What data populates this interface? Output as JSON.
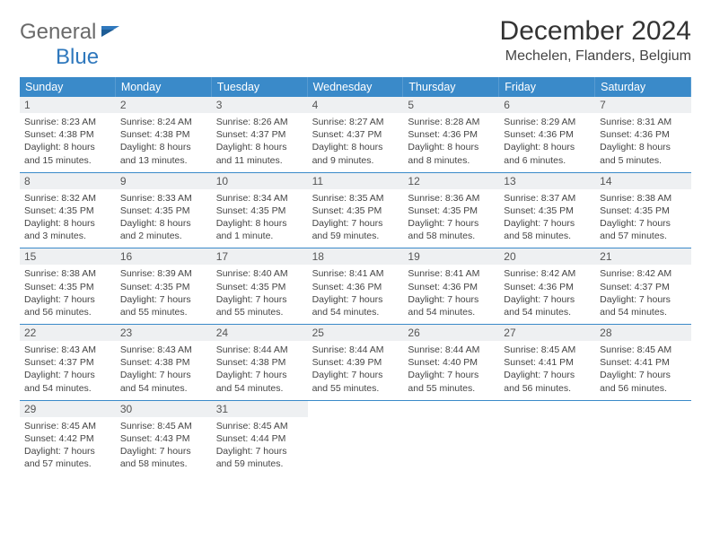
{
  "brand": {
    "part1": "General",
    "part2": "Blue"
  },
  "title": "December 2024",
  "location": "Mechelen, Flanders, Belgium",
  "colors": {
    "header_bg": "#3a8ac9",
    "header_text": "#ffffff",
    "daynum_bg": "#eef0f2",
    "rule": "#3a8ac9",
    "brand_gray": "#6a6a6a",
    "brand_blue": "#2f78bd"
  },
  "days_of_week": [
    "Sunday",
    "Monday",
    "Tuesday",
    "Wednesday",
    "Thursday",
    "Friday",
    "Saturday"
  ],
  "weeks": [
    [
      {
        "n": "1",
        "sr": "Sunrise: 8:23 AM",
        "ss": "Sunset: 4:38 PM",
        "dl1": "Daylight: 8 hours",
        "dl2": "and 15 minutes."
      },
      {
        "n": "2",
        "sr": "Sunrise: 8:24 AM",
        "ss": "Sunset: 4:38 PM",
        "dl1": "Daylight: 8 hours",
        "dl2": "and 13 minutes."
      },
      {
        "n": "3",
        "sr": "Sunrise: 8:26 AM",
        "ss": "Sunset: 4:37 PM",
        "dl1": "Daylight: 8 hours",
        "dl2": "and 11 minutes."
      },
      {
        "n": "4",
        "sr": "Sunrise: 8:27 AM",
        "ss": "Sunset: 4:37 PM",
        "dl1": "Daylight: 8 hours",
        "dl2": "and 9 minutes."
      },
      {
        "n": "5",
        "sr": "Sunrise: 8:28 AM",
        "ss": "Sunset: 4:36 PM",
        "dl1": "Daylight: 8 hours",
        "dl2": "and 8 minutes."
      },
      {
        "n": "6",
        "sr": "Sunrise: 8:29 AM",
        "ss": "Sunset: 4:36 PM",
        "dl1": "Daylight: 8 hours",
        "dl2": "and 6 minutes."
      },
      {
        "n": "7",
        "sr": "Sunrise: 8:31 AM",
        "ss": "Sunset: 4:36 PM",
        "dl1": "Daylight: 8 hours",
        "dl2": "and 5 minutes."
      }
    ],
    [
      {
        "n": "8",
        "sr": "Sunrise: 8:32 AM",
        "ss": "Sunset: 4:35 PM",
        "dl1": "Daylight: 8 hours",
        "dl2": "and 3 minutes."
      },
      {
        "n": "9",
        "sr": "Sunrise: 8:33 AM",
        "ss": "Sunset: 4:35 PM",
        "dl1": "Daylight: 8 hours",
        "dl2": "and 2 minutes."
      },
      {
        "n": "10",
        "sr": "Sunrise: 8:34 AM",
        "ss": "Sunset: 4:35 PM",
        "dl1": "Daylight: 8 hours",
        "dl2": "and 1 minute."
      },
      {
        "n": "11",
        "sr": "Sunrise: 8:35 AM",
        "ss": "Sunset: 4:35 PM",
        "dl1": "Daylight: 7 hours",
        "dl2": "and 59 minutes."
      },
      {
        "n": "12",
        "sr": "Sunrise: 8:36 AM",
        "ss": "Sunset: 4:35 PM",
        "dl1": "Daylight: 7 hours",
        "dl2": "and 58 minutes."
      },
      {
        "n": "13",
        "sr": "Sunrise: 8:37 AM",
        "ss": "Sunset: 4:35 PM",
        "dl1": "Daylight: 7 hours",
        "dl2": "and 58 minutes."
      },
      {
        "n": "14",
        "sr": "Sunrise: 8:38 AM",
        "ss": "Sunset: 4:35 PM",
        "dl1": "Daylight: 7 hours",
        "dl2": "and 57 minutes."
      }
    ],
    [
      {
        "n": "15",
        "sr": "Sunrise: 8:38 AM",
        "ss": "Sunset: 4:35 PM",
        "dl1": "Daylight: 7 hours",
        "dl2": "and 56 minutes."
      },
      {
        "n": "16",
        "sr": "Sunrise: 8:39 AM",
        "ss": "Sunset: 4:35 PM",
        "dl1": "Daylight: 7 hours",
        "dl2": "and 55 minutes."
      },
      {
        "n": "17",
        "sr": "Sunrise: 8:40 AM",
        "ss": "Sunset: 4:35 PM",
        "dl1": "Daylight: 7 hours",
        "dl2": "and 55 minutes."
      },
      {
        "n": "18",
        "sr": "Sunrise: 8:41 AM",
        "ss": "Sunset: 4:36 PM",
        "dl1": "Daylight: 7 hours",
        "dl2": "and 54 minutes."
      },
      {
        "n": "19",
        "sr": "Sunrise: 8:41 AM",
        "ss": "Sunset: 4:36 PM",
        "dl1": "Daylight: 7 hours",
        "dl2": "and 54 minutes."
      },
      {
        "n": "20",
        "sr": "Sunrise: 8:42 AM",
        "ss": "Sunset: 4:36 PM",
        "dl1": "Daylight: 7 hours",
        "dl2": "and 54 minutes."
      },
      {
        "n": "21",
        "sr": "Sunrise: 8:42 AM",
        "ss": "Sunset: 4:37 PM",
        "dl1": "Daylight: 7 hours",
        "dl2": "and 54 minutes."
      }
    ],
    [
      {
        "n": "22",
        "sr": "Sunrise: 8:43 AM",
        "ss": "Sunset: 4:37 PM",
        "dl1": "Daylight: 7 hours",
        "dl2": "and 54 minutes."
      },
      {
        "n": "23",
        "sr": "Sunrise: 8:43 AM",
        "ss": "Sunset: 4:38 PM",
        "dl1": "Daylight: 7 hours",
        "dl2": "and 54 minutes."
      },
      {
        "n": "24",
        "sr": "Sunrise: 8:44 AM",
        "ss": "Sunset: 4:38 PM",
        "dl1": "Daylight: 7 hours",
        "dl2": "and 54 minutes."
      },
      {
        "n": "25",
        "sr": "Sunrise: 8:44 AM",
        "ss": "Sunset: 4:39 PM",
        "dl1": "Daylight: 7 hours",
        "dl2": "and 55 minutes."
      },
      {
        "n": "26",
        "sr": "Sunrise: 8:44 AM",
        "ss": "Sunset: 4:40 PM",
        "dl1": "Daylight: 7 hours",
        "dl2": "and 55 minutes."
      },
      {
        "n": "27",
        "sr": "Sunrise: 8:45 AM",
        "ss": "Sunset: 4:41 PM",
        "dl1": "Daylight: 7 hours",
        "dl2": "and 56 minutes."
      },
      {
        "n": "28",
        "sr": "Sunrise: 8:45 AM",
        "ss": "Sunset: 4:41 PM",
        "dl1": "Daylight: 7 hours",
        "dl2": "and 56 minutes."
      }
    ],
    [
      {
        "n": "29",
        "sr": "Sunrise: 8:45 AM",
        "ss": "Sunset: 4:42 PM",
        "dl1": "Daylight: 7 hours",
        "dl2": "and 57 minutes."
      },
      {
        "n": "30",
        "sr": "Sunrise: 8:45 AM",
        "ss": "Sunset: 4:43 PM",
        "dl1": "Daylight: 7 hours",
        "dl2": "and 58 minutes."
      },
      {
        "n": "31",
        "sr": "Sunrise: 8:45 AM",
        "ss": "Sunset: 4:44 PM",
        "dl1": "Daylight: 7 hours",
        "dl2": "and 59 minutes."
      },
      null,
      null,
      null,
      null
    ]
  ]
}
